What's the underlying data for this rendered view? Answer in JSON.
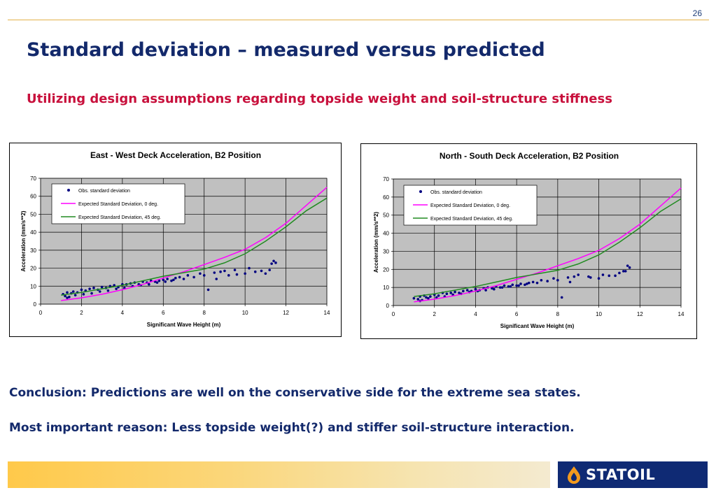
{
  "page_number": "26",
  "title": "Standard deviation – measured versus predicted",
  "subtitle": "Utilizing design assumptions regarding topside weight and soil-structure stiffness",
  "conclusion": "Conclusion: Predictions are well on the conservative side for the extreme sea states.",
  "reason": "Most important reason: Less topside weight(?) and stiffer soil-structure interaction.",
  "logo_text": "STATOIL",
  "colors": {
    "title": "#13296b",
    "subtitle": "#c8103c",
    "obs": "#000080",
    "pred0": "#ff00ff",
    "pred45": "#228b22",
    "plot_bg": "#c0c0c0"
  },
  "chart_data": [
    {
      "type": "scatter",
      "title": "East - West Deck Acceleration, B2 Position",
      "xlabel": "Significant Wave Height  (m)",
      "ylabel": "Acceleration (mm/s**2)",
      "xlim": [
        0,
        14
      ],
      "ylim": [
        0,
        70
      ],
      "xticks": [
        0,
        2,
        4,
        6,
        8,
        10,
        12,
        14
      ],
      "yticks": [
        0,
        10,
        20,
        30,
        40,
        50,
        60,
        70
      ],
      "grid": true,
      "legend_position": "top-left",
      "series": [
        {
          "name": "Obs. standard deviation",
          "kind": "points",
          "x": [
            1.1,
            1.2,
            1.3,
            1.4,
            1.5,
            1.6,
            1.8,
            2.0,
            2.2,
            2.4,
            2.6,
            2.8,
            3.0,
            3.2,
            3.4,
            3.6,
            3.8,
            4.0,
            4.2,
            4.4,
            4.6,
            4.8,
            5.0,
            5.2,
            5.4,
            5.6,
            5.8,
            6.0,
            6.2,
            6.4,
            6.6,
            6.8,
            7.0,
            7.2,
            7.5,
            7.8,
            8.0,
            8.2,
            8.5,
            8.8,
            9.0,
            9.2,
            9.5,
            10.0,
            10.5,
            11.0,
            11.2,
            11.4,
            11.5,
            1.3,
            1.7,
            2.1,
            2.5,
            2.9,
            3.3,
            3.7,
            4.1,
            4.5,
            4.9,
            5.3,
            5.7,
            6.1,
            6.5,
            8.6,
            9.6,
            10.2,
            10.8,
            11.3
          ],
          "y": [
            5.5,
            4.5,
            6.5,
            4.0,
            6.0,
            7.0,
            6.5,
            8.0,
            7.5,
            8.5,
            9.0,
            8.0,
            9.5,
            9.0,
            10.0,
            10.5,
            9.5,
            11.0,
            11.0,
            11.5,
            12.0,
            11.0,
            12.5,
            12.0,
            13.0,
            12.5,
            13.0,
            13.5,
            14.0,
            13.0,
            14.5,
            15.0,
            14.0,
            16.0,
            15.0,
            17.0,
            16.0,
            8.0,
            17.5,
            18.0,
            18.5,
            16.0,
            19.0,
            17.0,
            18.0,
            17.0,
            19.0,
            24.0,
            23.0,
            3.5,
            5.0,
            5.5,
            6.0,
            7.0,
            7.5,
            8.5,
            9.0,
            10.0,
            10.5,
            11.0,
            12.0,
            12.5,
            13.5,
            14.0,
            16.5,
            20.0,
            18.5,
            22.5
          ]
        },
        {
          "name": "Expected Standard Deviation, 0 deg.",
          "kind": "line",
          "x": [
            1,
            2,
            3,
            4,
            5,
            6,
            7,
            8,
            9,
            10,
            11,
            12,
            13,
            14
          ],
          "y": [
            2.0,
            3.5,
            5.5,
            8.0,
            11.0,
            14.5,
            18.0,
            22.0,
            26.0,
            30.5,
            37.0,
            45.0,
            55.0,
            65.0
          ]
        },
        {
          "name": "Expected Standard Deviation, 45 deg.",
          "kind": "line",
          "x": [
            1,
            2,
            3,
            4,
            5,
            6,
            7,
            8,
            9,
            10,
            11,
            12,
            13,
            14
          ],
          "y": [
            5.0,
            6.5,
            8.5,
            10.5,
            13.0,
            15.5,
            17.5,
            19.5,
            23.0,
            28.0,
            35.0,
            43.0,
            52.0,
            59.0
          ]
        }
      ]
    },
    {
      "type": "scatter",
      "title": "North - South  Deck Acceleration, B2 Position",
      "xlabel": "Significant Wave Height  (m)",
      "ylabel": "Acceleration (mm/s**2)",
      "xlim": [
        0,
        14
      ],
      "ylim": [
        0,
        70
      ],
      "xticks": [
        0,
        2,
        4,
        6,
        8,
        10,
        12,
        14
      ],
      "yticks": [
        0,
        10,
        20,
        30,
        40,
        50,
        60,
        70
      ],
      "grid": true,
      "legend_position": "top-left",
      "series": [
        {
          "name": "Obs. standard deviation",
          "kind": "points",
          "x": [
            1.0,
            1.2,
            1.3,
            1.4,
            1.5,
            1.6,
            1.8,
            2.0,
            2.2,
            2.4,
            2.6,
            2.8,
            3.0,
            3.2,
            3.4,
            3.6,
            3.8,
            4.0,
            4.2,
            4.4,
            4.6,
            4.8,
            5.0,
            5.2,
            5.4,
            5.6,
            5.8,
            6.0,
            6.2,
            6.4,
            6.6,
            6.8,
            7.0,
            7.2,
            7.5,
            7.8,
            8.0,
            8.2,
            8.5,
            8.8,
            9.0,
            9.5,
            10.0,
            10.5,
            11.0,
            11.2,
            11.4,
            11.5,
            1.3,
            1.7,
            2.1,
            2.5,
            2.9,
            3.3,
            3.7,
            4.1,
            4.5,
            4.9,
            5.3,
            5.7,
            6.1,
            6.5,
            8.6,
            9.6,
            10.2,
            10.8,
            11.3
          ],
          "y": [
            4.0,
            3.5,
            5.0,
            3.0,
            5.5,
            4.5,
            5.0,
            6.0,
            5.5,
            7.0,
            6.5,
            7.0,
            7.5,
            7.0,
            8.0,
            8.5,
            8.0,
            9.0,
            8.5,
            9.5,
            10.0,
            9.5,
            10.5,
            10.0,
            11.0,
            10.5,
            11.5,
            11.0,
            12.0,
            11.5,
            12.5,
            13.0,
            12.5,
            14.0,
            13.5,
            15.0,
            14.0,
            4.5,
            15.5,
            16.0,
            17.0,
            16.0,
            15.0,
            16.5,
            18.0,
            19.0,
            22.0,
            21.0,
            2.5,
            4.0,
            4.5,
            5.0,
            6.0,
            6.5,
            7.5,
            8.0,
            8.5,
            9.0,
            10.0,
            10.5,
            11.0,
            12.0,
            13.0,
            15.5,
            17.0,
            16.5,
            19.0
          ]
        },
        {
          "name": "Expected Standard Deviation, 0 deg.",
          "kind": "line",
          "x": [
            1,
            2,
            3,
            4,
            5,
            6,
            7,
            8,
            9,
            10,
            11,
            12,
            13,
            14
          ],
          "y": [
            2.0,
            3.5,
            5.5,
            8.0,
            11.0,
            14.5,
            18.0,
            22.0,
            26.0,
            30.5,
            37.0,
            45.0,
            55.0,
            65.0
          ]
        },
        {
          "name": "Expected Standard Deviation, 45 deg.",
          "kind": "line",
          "x": [
            1,
            2,
            3,
            4,
            5,
            6,
            7,
            8,
            9,
            10,
            11,
            12,
            13,
            14
          ],
          "y": [
            5.0,
            6.5,
            8.5,
            10.5,
            13.0,
            15.5,
            17.5,
            19.5,
            23.0,
            28.0,
            35.0,
            43.0,
            52.0,
            59.0
          ]
        }
      ]
    }
  ]
}
